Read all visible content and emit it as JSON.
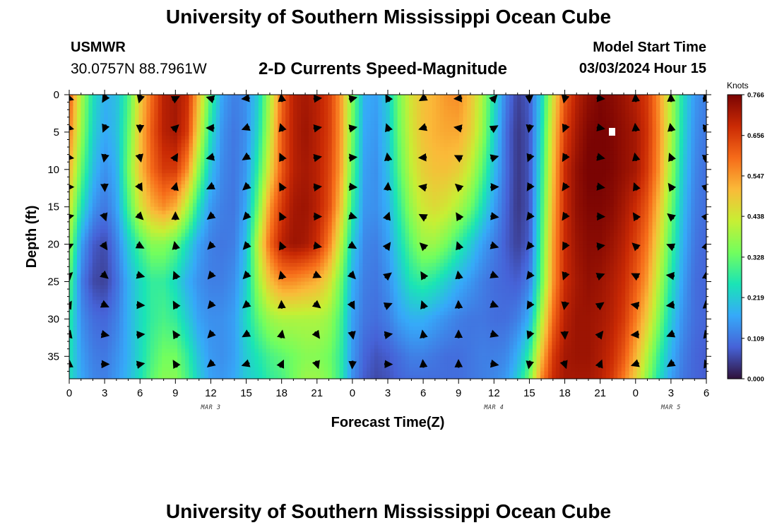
{
  "page": {
    "title": "University of Southern Mississippi Ocean Cube",
    "station_id": "USMWR",
    "station_coords": "30.0757N  88.7961W",
    "subtitle": "2-D Currents Speed-Magnitude",
    "model_label": "Model Start Time",
    "model_time": "03/03/2024 Hour 15",
    "footer_title": "University of Southern Mississippi Ocean Cube"
  },
  "chart_data": {
    "type": "heatmap",
    "title": "2-D Currents Speed-Magnitude",
    "xlabel": "Forecast Time(Z)",
    "ylabel": "Depth (ft)",
    "x_tick_labels": [
      "0",
      "3",
      "6",
      "9",
      "12",
      "15",
      "18",
      "21",
      "0",
      "3",
      "6",
      "9",
      "12",
      "15",
      "18",
      "21",
      "0",
      "3",
      "6"
    ],
    "x_tick_hours": [
      0,
      3,
      6,
      9,
      12,
      15,
      18,
      21,
      24,
      27,
      30,
      33,
      36,
      39,
      42,
      45,
      48,
      51,
      54
    ],
    "x_range_hours": [
      0,
      54
    ],
    "date_labels": [
      {
        "label": "MAR 3",
        "hour": 12
      },
      {
        "label": "MAR 4",
        "hour": 36
      },
      {
        "label": "MAR 5",
        "hour": 51
      }
    ],
    "y_tick_labels": [
      "0",
      "5",
      "10",
      "15",
      "20",
      "25",
      "30",
      "35"
    ],
    "y_ticks": [
      0,
      5,
      10,
      15,
      20,
      25,
      30,
      35
    ],
    "y_range": [
      0,
      38
    ],
    "y_inverted": true,
    "colorbar": {
      "label": "Knots",
      "min": 0.0,
      "max": 0.766,
      "tick_labels": [
        "0.766",
        "0.656",
        "0.547",
        "0.438",
        "0.328",
        "0.219",
        "0.109",
        "0.000"
      ],
      "tick_values": [
        0.766,
        0.656,
        0.547,
        0.438,
        0.328,
        0.219,
        0.109,
        0.0
      ],
      "colors": [
        "#30123b",
        "#4662d7",
        "#36a9f9",
        "#1ae4b6",
        "#72fe5e",
        "#c7ef34",
        "#faba39",
        "#f66b19",
        "#ca2a04",
        "#7a0403"
      ]
    },
    "speed_grid": {
      "x_hours": [
        0,
        1,
        2,
        3,
        4,
        5,
        6,
        7,
        8,
        9,
        10,
        11,
        12,
        13,
        14,
        15,
        16,
        17,
        18,
        19,
        20,
        21,
        22,
        23,
        24,
        25,
        26,
        27,
        28,
        29,
        30,
        31,
        32,
        33,
        34,
        35,
        36,
        37,
        38,
        39,
        40,
        41,
        42,
        43,
        44,
        45,
        46,
        47,
        48,
        49,
        50,
        51,
        52,
        53,
        54
      ],
      "depths_ft": [
        0,
        5,
        10,
        15,
        20,
        25,
        30,
        35,
        38
      ],
      "rows": [
        [
          0.62,
          0.4,
          0.25,
          0.18,
          0.2,
          0.3,
          0.48,
          0.6,
          0.7,
          0.72,
          0.68,
          0.5,
          0.3,
          0.16,
          0.12,
          0.14,
          0.22,
          0.4,
          0.6,
          0.7,
          0.72,
          0.7,
          0.66,
          0.55,
          0.35,
          0.18,
          0.16,
          0.22,
          0.35,
          0.45,
          0.5,
          0.52,
          0.55,
          0.56,
          0.5,
          0.4,
          0.25,
          0.12,
          0.05,
          0.08,
          0.22,
          0.45,
          0.62,
          0.7,
          0.74,
          0.76,
          0.75,
          0.73,
          0.7,
          0.66,
          0.55,
          0.4,
          0.25,
          0.15,
          0.12
        ],
        [
          0.58,
          0.38,
          0.23,
          0.17,
          0.2,
          0.32,
          0.5,
          0.62,
          0.7,
          0.72,
          0.66,
          0.45,
          0.25,
          0.14,
          0.11,
          0.14,
          0.24,
          0.42,
          0.62,
          0.7,
          0.73,
          0.7,
          0.66,
          0.55,
          0.34,
          0.17,
          0.15,
          0.21,
          0.34,
          0.44,
          0.5,
          0.52,
          0.53,
          0.53,
          0.48,
          0.38,
          0.23,
          0.1,
          0.04,
          0.07,
          0.24,
          0.48,
          0.65,
          0.72,
          0.76,
          0.77,
          0.76,
          0.74,
          0.72,
          0.67,
          0.56,
          0.4,
          0.24,
          0.14,
          0.11
        ],
        [
          0.52,
          0.33,
          0.2,
          0.14,
          0.18,
          0.34,
          0.5,
          0.6,
          0.66,
          0.66,
          0.56,
          0.36,
          0.2,
          0.13,
          0.11,
          0.15,
          0.28,
          0.46,
          0.62,
          0.7,
          0.72,
          0.7,
          0.65,
          0.54,
          0.32,
          0.16,
          0.14,
          0.2,
          0.32,
          0.42,
          0.48,
          0.5,
          0.5,
          0.48,
          0.42,
          0.32,
          0.2,
          0.1,
          0.04,
          0.07,
          0.26,
          0.5,
          0.68,
          0.74,
          0.77,
          0.77,
          0.76,
          0.74,
          0.72,
          0.66,
          0.55,
          0.38,
          0.22,
          0.13,
          0.1
        ],
        [
          0.45,
          0.26,
          0.15,
          0.11,
          0.16,
          0.3,
          0.44,
          0.52,
          0.56,
          0.52,
          0.4,
          0.25,
          0.15,
          0.12,
          0.11,
          0.17,
          0.34,
          0.55,
          0.66,
          0.72,
          0.73,
          0.7,
          0.64,
          0.5,
          0.28,
          0.15,
          0.14,
          0.18,
          0.28,
          0.38,
          0.44,
          0.46,
          0.44,
          0.4,
          0.34,
          0.25,
          0.16,
          0.09,
          0.04,
          0.07,
          0.28,
          0.52,
          0.68,
          0.74,
          0.76,
          0.76,
          0.75,
          0.72,
          0.68,
          0.62,
          0.5,
          0.34,
          0.2,
          0.12,
          0.1
        ],
        [
          0.38,
          0.16,
          0.08,
          0.06,
          0.12,
          0.22,
          0.3,
          0.36,
          0.36,
          0.32,
          0.24,
          0.16,
          0.12,
          0.11,
          0.12,
          0.2,
          0.42,
          0.6,
          0.7,
          0.73,
          0.72,
          0.68,
          0.58,
          0.42,
          0.22,
          0.13,
          0.12,
          0.16,
          0.24,
          0.32,
          0.38,
          0.38,
          0.34,
          0.28,
          0.22,
          0.16,
          0.12,
          0.08,
          0.05,
          0.08,
          0.3,
          0.54,
          0.68,
          0.73,
          0.75,
          0.75,
          0.73,
          0.7,
          0.65,
          0.58,
          0.45,
          0.3,
          0.18,
          0.11,
          0.09
        ],
        [
          0.32,
          0.12,
          0.06,
          0.05,
          0.1,
          0.18,
          0.24,
          0.28,
          0.28,
          0.24,
          0.18,
          0.14,
          0.12,
          0.12,
          0.14,
          0.22,
          0.38,
          0.5,
          0.56,
          0.56,
          0.54,
          0.52,
          0.46,
          0.34,
          0.18,
          0.12,
          0.11,
          0.14,
          0.2,
          0.26,
          0.28,
          0.26,
          0.22,
          0.18,
          0.15,
          0.12,
          0.1,
          0.09,
          0.08,
          0.12,
          0.32,
          0.55,
          0.68,
          0.72,
          0.74,
          0.73,
          0.71,
          0.68,
          0.62,
          0.54,
          0.4,
          0.26,
          0.16,
          0.1,
          0.09
        ],
        [
          0.28,
          0.14,
          0.1,
          0.09,
          0.12,
          0.18,
          0.24,
          0.28,
          0.3,
          0.28,
          0.22,
          0.16,
          0.14,
          0.14,
          0.16,
          0.24,
          0.32,
          0.38,
          0.4,
          0.4,
          0.4,
          0.4,
          0.38,
          0.3,
          0.16,
          0.11,
          0.1,
          0.12,
          0.16,
          0.18,
          0.18,
          0.16,
          0.14,
          0.12,
          0.11,
          0.11,
          0.1,
          0.1,
          0.12,
          0.18,
          0.4,
          0.6,
          0.7,
          0.73,
          0.73,
          0.72,
          0.7,
          0.66,
          0.58,
          0.48,
          0.35,
          0.22,
          0.14,
          0.1,
          0.09
        ],
        [
          0.26,
          0.16,
          0.12,
          0.11,
          0.14,
          0.18,
          0.24,
          0.3,
          0.34,
          0.34,
          0.28,
          0.2,
          0.15,
          0.14,
          0.16,
          0.22,
          0.26,
          0.3,
          0.32,
          0.34,
          0.36,
          0.36,
          0.34,
          0.28,
          0.15,
          0.09,
          0.07,
          0.08,
          0.1,
          0.12,
          0.12,
          0.11,
          0.1,
          0.1,
          0.11,
          0.12,
          0.12,
          0.13,
          0.18,
          0.28,
          0.5,
          0.66,
          0.72,
          0.73,
          0.73,
          0.71,
          0.68,
          0.62,
          0.52,
          0.4,
          0.28,
          0.18,
          0.12,
          0.09,
          0.08
        ],
        [
          0.25,
          0.17,
          0.13,
          0.12,
          0.15,
          0.19,
          0.25,
          0.32,
          0.36,
          0.36,
          0.3,
          0.22,
          0.16,
          0.15,
          0.17,
          0.22,
          0.24,
          0.28,
          0.3,
          0.34,
          0.38,
          0.38,
          0.35,
          0.28,
          0.14,
          0.08,
          0.06,
          0.07,
          0.09,
          0.1,
          0.1,
          0.1,
          0.1,
          0.1,
          0.11,
          0.12,
          0.13,
          0.15,
          0.22,
          0.34,
          0.56,
          0.68,
          0.72,
          0.72,
          0.72,
          0.7,
          0.66,
          0.58,
          0.48,
          0.36,
          0.25,
          0.16,
          0.11,
          0.09,
          0.08
        ]
      ]
    }
  }
}
